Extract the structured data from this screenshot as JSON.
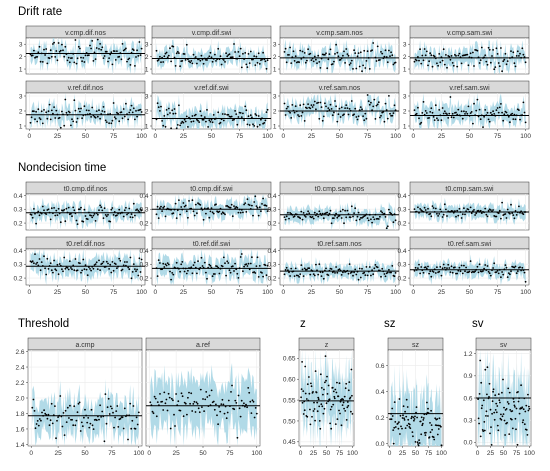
{
  "sections": [
    {
      "title": "Drift rate"
    },
    {
      "title": "Nondecision time"
    },
    {
      "title": "Threshold"
    },
    {
      "title": "z"
    },
    {
      "title": "sz"
    },
    {
      "title": "sv"
    }
  ],
  "colors": {
    "band": "#add8e6",
    "point": "#000000",
    "line": "#000000",
    "strip": "#d9d9d9",
    "grid": "#ebebeb",
    "panel_border": "#333333"
  },
  "chart_data": [
    {
      "id": "drift",
      "type": "scatter",
      "title": "Drift rate",
      "facets": [
        "v.cmp.dif.nos",
        "v.cmp.dif.swi",
        "v.cmp.sam.nos",
        "v.cmp.sam.swi",
        "v.ref.dif.nos",
        "v.ref.dif.swi",
        "v.ref.sam.nos",
        "v.ref.sam.swi"
      ],
      "facet_rows": [
        {
          "ylim": [
            0.6,
            3.5
          ],
          "yticks": [
            1,
            2,
            3
          ],
          "yticklabels": [
            "1",
            "2",
            "3"
          ]
        },
        {
          "ylim": [
            0.8,
            3.2
          ],
          "yticks": [
            1,
            2,
            3
          ],
          "yticklabels": [
            "1",
            "2",
            "3"
          ]
        }
      ],
      "xlim": [
        0,
        100
      ],
      "xticks": [
        0,
        25,
        50,
        75,
        100
      ],
      "xticklabels": [
        "0",
        "25",
        "50",
        "75",
        "100"
      ],
      "show_x_tick_labels_on": "bottom-row",
      "reference_lines": [
        2.25,
        1.85,
        1.9,
        1.9,
        1.75,
        1.5,
        2.0,
        1.7
      ],
      "series": [
        {
          "name": "",
          "center": [
            2.3,
            1.9,
            1.9,
            1.9,
            1.75,
            1.5,
            2.05,
            1.75
          ],
          "spread": [
            0.45,
            0.4,
            0.45,
            0.45,
            0.4,
            0.4,
            0.4,
            0.4
          ],
          "band_half_width": [
            0.6,
            0.55,
            0.6,
            0.6,
            0.5,
            0.55,
            0.5,
            0.55
          ]
        }
      ],
      "n_points": 100
    },
    {
      "id": "t0",
      "type": "scatter",
      "title": "Nondecision time",
      "facets": [
        "t0.cmp.dif.nos",
        "t0.cmp.dif.swi",
        "t0.cmp.sam.nos",
        "t0.cmp.sam.swi",
        "t0.ref.dif.nos",
        "t0.ref.dif.swi",
        "t0.ref.sam.nos",
        "t0.ref.sam.swi"
      ],
      "facet_rows": [
        {
          "ylim": [
            0.15,
            0.41
          ],
          "yticks": [
            0.2,
            0.3,
            0.4
          ],
          "yticklabels": [
            "0.2",
            "0.3",
            "0.4"
          ]
        },
        {
          "ylim": [
            0.15,
            0.41
          ],
          "yticks": [
            0.2,
            0.3,
            0.4
          ],
          "yticklabels": [
            "0.2",
            "0.3",
            "0.4"
          ]
        }
      ],
      "xlim": [
        0,
        100
      ],
      "xticks": [
        0,
        25,
        50,
        75,
        100
      ],
      "xticklabels": [
        "0",
        "25",
        "50",
        "75",
        "100"
      ],
      "show_x_tick_labels_on": "bottom-row",
      "reference_lines": [
        0.275,
        0.3,
        0.26,
        0.28,
        0.285,
        0.27,
        0.25,
        0.26
      ],
      "series": [
        {
          "name": "",
          "center": [
            0.27,
            0.3,
            0.255,
            0.28,
            0.29,
            0.28,
            0.25,
            0.26
          ],
          "spread": [
            0.03,
            0.03,
            0.025,
            0.025,
            0.035,
            0.035,
            0.025,
            0.025
          ],
          "band_half_width": [
            0.05,
            0.05,
            0.045,
            0.045,
            0.06,
            0.06,
            0.045,
            0.045
          ]
        }
      ],
      "n_points": 100
    },
    {
      "id": "threshold",
      "type": "scatter",
      "title": "Threshold",
      "facets": [
        "a.cmp",
        "a.ref"
      ],
      "ylim": [
        1.38,
        2.62
      ],
      "yticks": [
        1.4,
        1.6,
        1.8,
        2.0,
        2.2,
        2.4,
        2.6
      ],
      "yticklabels": [
        "1.4",
        "1.6",
        "1.8",
        "2.0",
        "2.2",
        "2.4",
        "2.6"
      ],
      "xlim": [
        0,
        100
      ],
      "xticks": [
        0,
        25,
        50,
        75,
        100
      ],
      "xticklabels": [
        "0",
        "25",
        "50",
        "75",
        "100"
      ],
      "reference_lines": [
        1.77,
        1.9
      ],
      "series": [
        {
          "name": "",
          "center": [
            1.75,
            1.9
          ],
          "spread": [
            0.12,
            0.12
          ],
          "band_half_width": [
            0.2,
            0.3
          ]
        }
      ],
      "n_points": 100
    },
    {
      "id": "z",
      "type": "scatter",
      "title": "z",
      "facets": [
        "z"
      ],
      "ylim": [
        0.44,
        0.67
      ],
      "yticks": [
        0.45,
        0.5,
        0.55,
        0.6,
        0.65
      ],
      "yticklabels": [
        "0.45",
        "0.50",
        "0.55",
        "0.60",
        "0.65"
      ],
      "xlim": [
        0,
        100
      ],
      "xticks": [
        0,
        25,
        50,
        75,
        100
      ],
      "xticklabels": [
        "0",
        "25",
        "50",
        "75",
        "100"
      ],
      "reference_lines": [
        0.548
      ],
      "series": [
        {
          "name": "",
          "center": [
            0.55
          ],
          "spread": [
            0.035
          ],
          "band_half_width": [
            0.055
          ]
        }
      ],
      "n_points": 100
    },
    {
      "id": "sz",
      "type": "scatter",
      "title": "sz",
      "facets": [
        "sz"
      ],
      "ylim": [
        -0.02,
        0.72
      ],
      "yticks": [
        0.0,
        0.2,
        0.4,
        0.6
      ],
      "yticklabels": [
        "0.0",
        "0.2",
        "0.4",
        "0.6"
      ],
      "xlim": [
        0,
        100
      ],
      "xticks": [
        0,
        25,
        50,
        75,
        100
      ],
      "xticklabels": [
        "0",
        "25",
        "50",
        "75",
        "100"
      ],
      "reference_lines": [
        0.23
      ],
      "series": [
        {
          "name": "",
          "center": [
            0.15
          ],
          "spread": [
            0.1
          ],
          "band_half_width": [
            0.22
          ]
        }
      ],
      "n_points": 100
    },
    {
      "id": "sv",
      "type": "scatter",
      "title": "sv",
      "facets": [
        "sv"
      ],
      "ylim": [
        -0.05,
        1.25
      ],
      "yticks": [
        0.0,
        0.3,
        0.6,
        0.9,
        1.2
      ],
      "yticklabels": [
        "0.0",
        "0.3",
        "0.6",
        "0.9",
        "1.2"
      ],
      "xlim": [
        0,
        100
      ],
      "xticks": [
        0,
        25,
        50,
        75,
        100
      ],
      "xticklabels": [
        "0",
        "25",
        "50",
        "75",
        "100"
      ],
      "reference_lines": [
        0.6
      ],
      "series": [
        {
          "name": "",
          "center": [
            0.45
          ],
          "spread": [
            0.22
          ],
          "band_half_width": [
            0.4
          ]
        }
      ],
      "n_points": 100
    }
  ]
}
